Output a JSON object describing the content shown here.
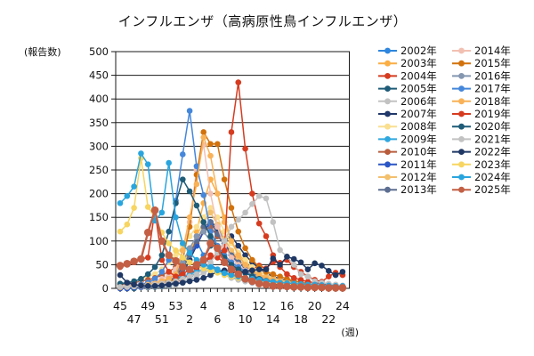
{
  "title": "インフルエンザ（高病原性鳥インフルエンザ）",
  "chart_data": {
    "type": "line",
    "title": "インフルエンザ（高病原性鳥インフルエンザ）",
    "ylabel": "(報告数)",
    "xlabel": "(週)",
    "ylim": [
      0,
      500
    ],
    "ytick_step": 50,
    "y_tick_labels": [
      "0",
      "50",
      "100",
      "150",
      "200",
      "250",
      "300",
      "350",
      "400",
      "450",
      "500"
    ],
    "x_categories": [
      "45",
      "46",
      "47",
      "48",
      "49",
      "50",
      "51",
      "52",
      "53",
      "1",
      "2",
      "3",
      "4",
      "5",
      "6",
      "7",
      "8",
      "9",
      "10",
      "11",
      "12",
      "13",
      "14",
      "15",
      "16",
      "17",
      "18",
      "19",
      "20",
      "21",
      "22",
      "23",
      "24"
    ],
    "x_labels_row1": [
      "45",
      "49",
      "53",
      "4",
      "8",
      "12",
      "16",
      "20",
      "24"
    ],
    "x_labels_row1_indices": [
      0,
      4,
      8,
      12,
      16,
      20,
      24,
      28,
      32
    ],
    "x_labels_row2": [
      "47",
      "51",
      "2",
      "6",
      "10",
      "14",
      "18",
      "22"
    ],
    "x_labels_row2_indices": [
      2,
      6,
      10,
      14,
      18,
      22,
      26,
      30
    ],
    "grid": "horizontal",
    "legend_position": "right",
    "series": [
      {
        "name": "2002年",
        "color": "#2E86DE",
        "values": [
          2,
          3,
          4,
          5,
          6,
          8,
          10,
          12,
          15,
          40,
          80,
          100,
          70,
          50,
          40,
          30,
          25,
          20,
          15,
          12,
          10,
          8,
          6,
          5,
          5,
          4,
          4,
          3,
          3,
          2,
          2,
          2,
          2
        ]
      },
      {
        "name": "2003年",
        "color": "#FBAE44",
        "values": [
          2,
          2,
          3,
          4,
          5,
          6,
          8,
          10,
          15,
          30,
          60,
          120,
          180,
          230,
          200,
          150,
          100,
          75,
          55,
          40,
          30,
          22,
          16,
          12,
          10,
          8,
          6,
          5,
          4,
          4,
          3,
          3,
          2
        ]
      },
      {
        "name": "2004年",
        "color": "#D63B1F",
        "values": [
          2,
          3,
          3,
          4,
          5,
          6,
          8,
          10,
          12,
          20,
          30,
          40,
          55,
          70,
          65,
          55,
          45,
          38,
          35,
          40,
          48,
          42,
          56,
          54,
          60,
          45,
          35,
          25,
          18,
          14,
          25,
          33,
          28
        ]
      },
      {
        "name": "2005年",
        "color": "#1E5C78",
        "values": [
          0,
          0,
          0,
          2,
          2,
          3,
          4,
          5,
          8,
          12,
          20,
          35,
          60,
          90,
          110,
          95,
          70,
          50,
          35,
          25,
          18,
          14,
          10,
          8,
          6,
          5,
          4,
          3,
          3,
          2,
          2,
          2,
          1
        ]
      },
      {
        "name": "2006年",
        "color": "#C2C2C2",
        "values": [
          1,
          1,
          2,
          2,
          3,
          4,
          5,
          6,
          8,
          12,
          18,
          25,
          32,
          40,
          35,
          28,
          22,
          18,
          15,
          12,
          10,
          8,
          7,
          6,
          5,
          4,
          4,
          3,
          3,
          2,
          2,
          2,
          1
        ]
      },
      {
        "name": "2007年",
        "color": "#20386A",
        "values": [
          2,
          2,
          3,
          4,
          5,
          6,
          8,
          10,
          14,
          30,
          60,
          90,
          120,
          140,
          120,
          100,
          110,
          90,
          70,
          55,
          42,
          32,
          25,
          20,
          16,
          13,
          10,
          8,
          7,
          6,
          5,
          4,
          3
        ]
      },
      {
        "name": "2008年",
        "color": "#F9DF8F",
        "values": [
          10,
          12,
          15,
          20,
          25,
          30,
          40,
          55,
          70,
          90,
          110,
          130,
          150,
          170,
          150,
          120,
          95,
          75,
          60,
          45,
          35,
          28,
          22,
          18,
          14,
          12,
          10,
          8,
          7,
          6,
          5,
          4,
          4
        ]
      },
      {
        "name": "2009年",
        "color": "#2FA8E0",
        "values": [
          5,
          5,
          6,
          8,
          10,
          12,
          15,
          18,
          20,
          25,
          30,
          35,
          40,
          45,
          40,
          35,
          28,
          22,
          18,
          15,
          12,
          10,
          8,
          6,
          5,
          5,
          4,
          4,
          3,
          3,
          2,
          2,
          2
        ]
      },
      {
        "name": "2010年",
        "color": "#B85C3C",
        "values": [
          8,
          10,
          12,
          15,
          18,
          22,
          28,
          35,
          45,
          60,
          80,
          95,
          120,
          130,
          110,
          95,
          75,
          60,
          48,
          38,
          30,
          24,
          19,
          15,
          12,
          10,
          8,
          7,
          6,
          5,
          4,
          3,
          3
        ]
      },
      {
        "name": "2011年",
        "color": "#2A56C6",
        "values": [
          0,
          0,
          2,
          3,
          5,
          8,
          10,
          15,
          25,
          45,
          70,
          90,
          120,
          140,
          130,
          95,
          70,
          50,
          35,
          25,
          18,
          14,
          10,
          8,
          6,
          5,
          4,
          4,
          3,
          3,
          2,
          2,
          2
        ]
      },
      {
        "name": "2012年",
        "color": "#F3C06E",
        "values": [
          4,
          5,
          6,
          8,
          10,
          12,
          16,
          22,
          30,
          50,
          80,
          110,
          140,
          160,
          135,
          105,
          80,
          62,
          48,
          38,
          30,
          24,
          19,
          15,
          12,
          10,
          8,
          7,
          6,
          5,
          4,
          4,
          3
        ]
      },
      {
        "name": "2013年",
        "color": "#5C6E91",
        "values": [
          2,
          3,
          4,
          5,
          6,
          8,
          10,
          14,
          20,
          40,
          70,
          100,
          130,
          140,
          115,
          90,
          70,
          55,
          42,
          32,
          25,
          20,
          16,
          13,
          10,
          8,
          7,
          6,
          5,
          4,
          3,
          3,
          2
        ]
      },
      {
        "name": "2014年",
        "color": "#F2C0B2",
        "values": [
          5,
          6,
          8,
          10,
          12,
          15,
          20,
          28,
          40,
          80,
          140,
          250,
          303,
          200,
          130,
          90,
          65,
          50,
          38,
          30,
          24,
          19,
          15,
          12,
          10,
          8,
          7,
          6,
          5,
          4,
          4,
          3,
          3
        ]
      },
      {
        "name": "2015年",
        "color": "#D2720D",
        "values": [
          2,
          3,
          4,
          5,
          6,
          8,
          10,
          14,
          20,
          60,
          130,
          240,
          330,
          305,
          305,
          230,
          170,
          120,
          85,
          60,
          45,
          35,
          30,
          25,
          20,
          16,
          13,
          10,
          8,
          6,
          5,
          4,
          3
        ]
      },
      {
        "name": "2016年",
        "color": "#8496B0",
        "values": [
          3,
          4,
          5,
          6,
          8,
          10,
          14,
          20,
          30,
          55,
          85,
          110,
          120,
          100,
          80,
          65,
          52,
          42,
          34,
          27,
          22,
          18,
          15,
          12,
          10,
          8,
          7,
          6,
          5,
          4,
          4,
          3,
          3
        ]
      },
      {
        "name": "2017年",
        "color": "#4587DB",
        "values": [
          3,
          4,
          5,
          8,
          12,
          20,
          35,
          60,
          185,
          283,
          375,
          258,
          197,
          120,
          90,
          70,
          55,
          45,
          36,
          29,
          23,
          18,
          15,
          12,
          10,
          8,
          7,
          6,
          5,
          4,
          3,
          3,
          2
        ]
      },
      {
        "name": "2018年",
        "color": "#F9B257",
        "values": [
          3,
          4,
          5,
          6,
          8,
          10,
          15,
          20,
          30,
          80,
          150,
          220,
          319,
          280,
          200,
          140,
          100,
          70,
          50,
          35,
          28,
          22,
          18,
          15,
          12,
          10,
          8,
          7,
          6,
          5,
          4,
          4,
          3
        ]
      },
      {
        "name": "2019年",
        "color": "#D63B1F",
        "values": [
          45,
          50,
          55,
          62,
          65,
          165,
          60,
          35,
          25,
          30,
          40,
          45,
          55,
          65,
          70,
          80,
          330,
          435,
          295,
          200,
          137,
          110,
          70,
          45,
          30,
          22,
          18,
          14,
          12,
          10,
          8,
          7,
          5
        ]
      },
      {
        "name": "2020年",
        "color": "#1E5C78",
        "values": [
          10,
          12,
          15,
          20,
          30,
          45,
          70,
          120,
          180,
          230,
          205,
          175,
          140,
          110,
          85,
          65,
          50,
          40,
          32,
          26,
          20,
          16,
          13,
          11,
          9,
          8,
          7,
          6,
          5,
          4,
          4,
          3,
          3
        ]
      },
      {
        "name": "2021年",
        "color": "#C2C2C2",
        "values": [
          3,
          3,
          4,
          5,
          6,
          8,
          10,
          12,
          15,
          20,
          25,
          30,
          40,
          55,
          75,
          100,
          130,
          145,
          160,
          178,
          195,
          190,
          140,
          81,
          67,
          50,
          30,
          25,
          15,
          12,
          10,
          8,
          6
        ]
      },
      {
        "name": "2022年",
        "color": "#1F3864",
        "values": [
          28,
          12,
          8,
          6,
          5,
          5,
          6,
          8,
          10,
          12,
          15,
          18,
          22,
          28,
          35,
          38,
          35,
          32,
          35,
          38,
          40,
          40,
          63,
          50,
          67,
          62,
          55,
          40,
          53,
          48,
          37,
          28,
          35
        ]
      },
      {
        "name": "2023年",
        "color": "#F7D560",
        "values": [
          120,
          135,
          170,
          275,
          172,
          150,
          118,
          95,
          80,
          65,
          55,
          48,
          42,
          38,
          33,
          28,
          25,
          22,
          20,
          18,
          15,
          13,
          12,
          10,
          9,
          8,
          7,
          6,
          5,
          5,
          4,
          4,
          3
        ]
      },
      {
        "name": "2024年",
        "color": "#29A5DE",
        "values": [
          180,
          195,
          215,
          285,
          262,
          143,
          160,
          265,
          150,
          95,
          75,
          60,
          50,
          45,
          38,
          32,
          28,
          25,
          22,
          20,
          18,
          15,
          14,
          12,
          11,
          10,
          9,
          8,
          8,
          7,
          6,
          5,
          5
        ]
      },
      {
        "name": "2025年",
        "color": "#C35F44",
        "values": [
          48,
          52,
          57,
          62,
          118,
          165,
          100,
          70,
          58,
          45,
          40,
          50,
          60,
          95,
          85,
          55,
          40,
          30,
          20,
          15,
          10,
          8,
          5,
          5,
          4,
          3,
          3,
          2,
          2,
          2,
          1,
          1,
          1
        ]
      }
    ]
  }
}
